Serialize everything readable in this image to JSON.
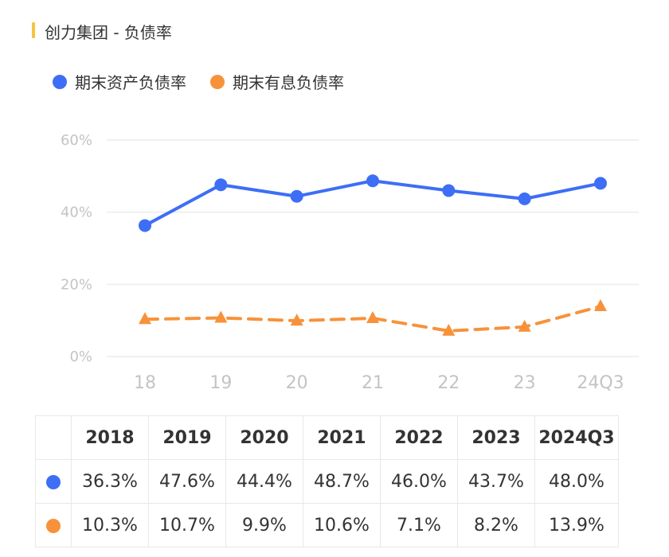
{
  "title": "创力集团 - 负债率",
  "colors": {
    "accent": "#f5c542",
    "blue": "#3d6ef5",
    "orange": "#f7923a",
    "grid": "#ececec"
  },
  "chart_data": {
    "type": "line",
    "title": "创力集团 - 负债率",
    "categories": [
      "18",
      "19",
      "20",
      "21",
      "22",
      "23",
      "24Q3"
    ],
    "y_ticks": [
      "60%",
      "40%",
      "20%",
      "0%"
    ],
    "ylim": [
      0,
      60
    ],
    "grid": true,
    "legend_position": "top-left",
    "series": [
      {
        "name": "期末资产负债率",
        "values": [
          36.3,
          47.6,
          44.4,
          48.7,
          46.0,
          43.7,
          48.0
        ],
        "color": "#3d6ef5",
        "marker": "circle",
        "line": "solid"
      },
      {
        "name": "期末有息负债率",
        "values": [
          10.3,
          10.7,
          9.9,
          10.6,
          7.1,
          8.2,
          13.9
        ],
        "color": "#f7923a",
        "marker": "triangle",
        "line": "dashed"
      }
    ]
  },
  "table": {
    "headers": [
      "2018",
      "2019",
      "2020",
      "2021",
      "2022",
      "2023",
      "2024Q3"
    ],
    "rows": [
      {
        "color": "#3d6ef5",
        "cells": [
          "36.3%",
          "47.6%",
          "44.4%",
          "48.7%",
          "46.0%",
          "43.7%",
          "48.0%"
        ]
      },
      {
        "color": "#f7923a",
        "cells": [
          "10.3%",
          "10.7%",
          "9.9%",
          "10.6%",
          "7.1%",
          "8.2%",
          "13.9%"
        ]
      }
    ]
  }
}
